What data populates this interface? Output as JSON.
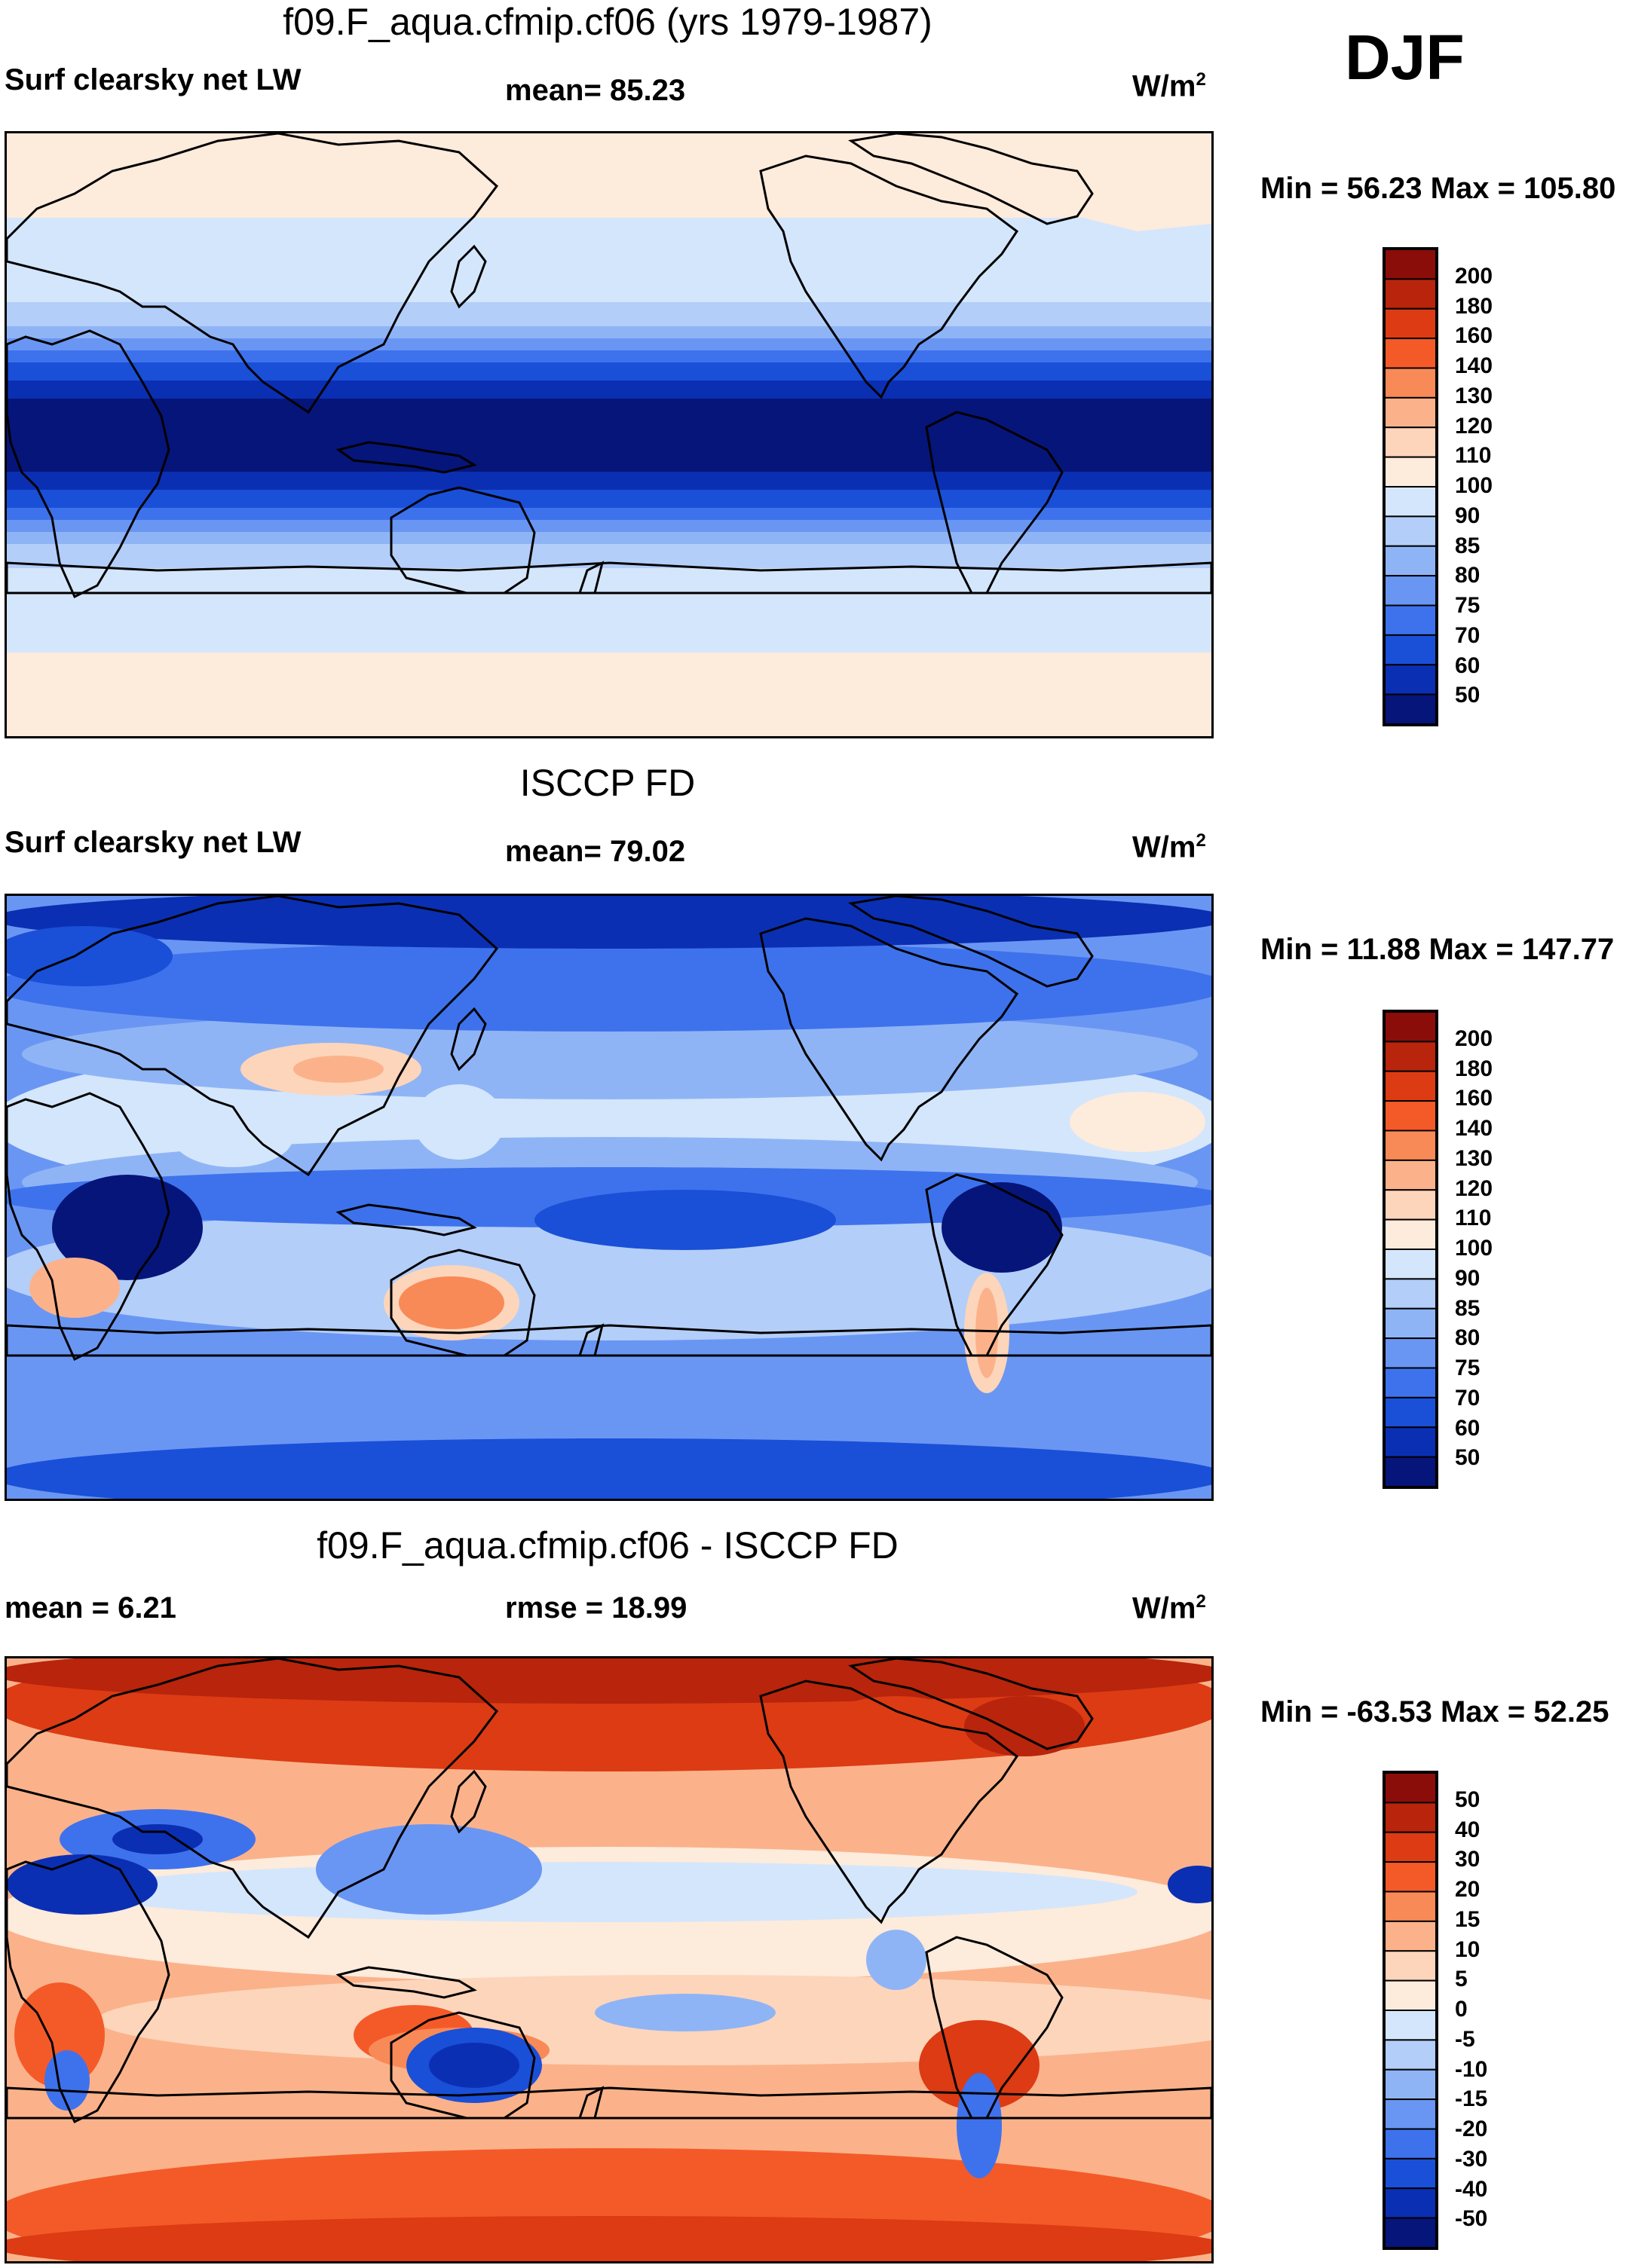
{
  "season": "DJF",
  "chart_data": [
    {
      "type": "heatmap",
      "title": "f09.F_aqua.cfmip.cf06 (yrs 1979-1987)",
      "left_label": "Surf clearsky net LW",
      "center_label": "mean=  85.23",
      "units": "W/m",
      "units_exp": "2",
      "stats": "Min =  56.23 Max = 105.80",
      "levels": [
        "200",
        "180",
        "160",
        "140",
        "130",
        "120",
        "110",
        "100",
        "90",
        "85",
        "80",
        "75",
        "70",
        "60",
        "50"
      ],
      "colors": [
        "#8a0d0a",
        "#b8240c",
        "#dc3b14",
        "#f45a28",
        "#f88a57",
        "#fbb28a",
        "#fdd5bb",
        "#fdebdc",
        "#d4e6fb",
        "#b3cef8",
        "#8fb4f6",
        "#6a96f3",
        "#3e72ec",
        "#1a4fd8",
        "#0b2fb3",
        "#06157a"
      ],
      "pattern": "zonal-aquaplanet"
    },
    {
      "type": "heatmap",
      "title": "ISCCP FD",
      "left_label": "Surf clearsky net LW",
      "center_label": "mean=  79.02",
      "units": "W/m",
      "units_exp": "2",
      "stats": "Min =  11.88 Max = 147.77",
      "levels": [
        "200",
        "180",
        "160",
        "140",
        "130",
        "120",
        "110",
        "100",
        "90",
        "85",
        "80",
        "75",
        "70",
        "60",
        "50"
      ],
      "colors": [
        "#8a0d0a",
        "#b8240c",
        "#dc3b14",
        "#f45a28",
        "#f88a57",
        "#fbb28a",
        "#fdd5bb",
        "#fdebdc",
        "#d4e6fb",
        "#b3cef8",
        "#8fb4f6",
        "#6a96f3",
        "#3e72ec",
        "#1a4fd8",
        "#0b2fb3",
        "#06157a"
      ],
      "pattern": "observed"
    },
    {
      "type": "heatmap",
      "title": "f09.F_aqua.cfmip.cf06 - ISCCP FD",
      "left_label": "mean =   6.21",
      "center_label": "rmse =  18.99",
      "units": "W/m",
      "units_exp": "2",
      "stats": "Min = -63.53 Max =  52.25",
      "levels": [
        "50",
        "40",
        "30",
        "20",
        "15",
        "10",
        "5",
        "0",
        "-5",
        "-10",
        "-15",
        "-20",
        "-30",
        "-40",
        "-50"
      ],
      "colors": [
        "#8a0d0a",
        "#b8240c",
        "#dc3b14",
        "#f45a28",
        "#f88a57",
        "#fbb28a",
        "#fdd5bb",
        "#fdebdc",
        "#d4e6fb",
        "#b3cef8",
        "#8fb4f6",
        "#6a96f3",
        "#3e72ec",
        "#1a4fd8",
        "#0b2fb3",
        "#06157a"
      ],
      "pattern": "difference"
    }
  ]
}
